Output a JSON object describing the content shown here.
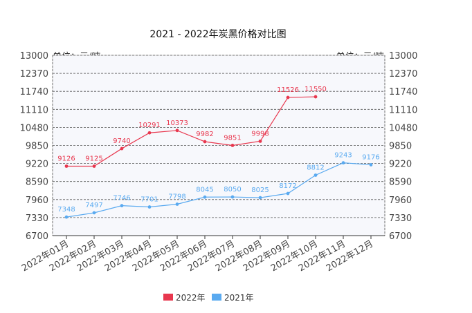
{
  "chart_data": {
    "type": "line",
    "title": "2021 - 2022年炭黑价格对比图",
    "unit_left": "单位：元/吨",
    "unit_right": "单位：元/吨",
    "categories": [
      "2022年01月",
      "2022年02月",
      "2022年03月",
      "2022年04月",
      "2022年05月",
      "2022年06月",
      "2022年07月",
      "2022年08月",
      "2022年09月",
      "2022年10月",
      "2022年11月",
      "2022年12月"
    ],
    "ylim": [
      6700,
      13000
    ],
    "yticks": [
      6700,
      7330,
      7960,
      8590,
      9220,
      9850,
      10480,
      11110,
      11740,
      12370,
      13000
    ],
    "grid": true,
    "legend_position": "bottom",
    "series": [
      {
        "name": "2022年",
        "color": "#e8374e",
        "values": [
          9126,
          9125,
          9740,
          10291,
          10373,
          9982,
          9851,
          9998,
          11526,
          11550,
          null,
          null
        ]
      },
      {
        "name": "2021年",
        "color": "#5aaaf0",
        "values": [
          7348,
          7497,
          7746,
          7701,
          7798,
          8045,
          8050,
          8025,
          8172,
          8812,
          9243,
          9176
        ]
      }
    ]
  }
}
